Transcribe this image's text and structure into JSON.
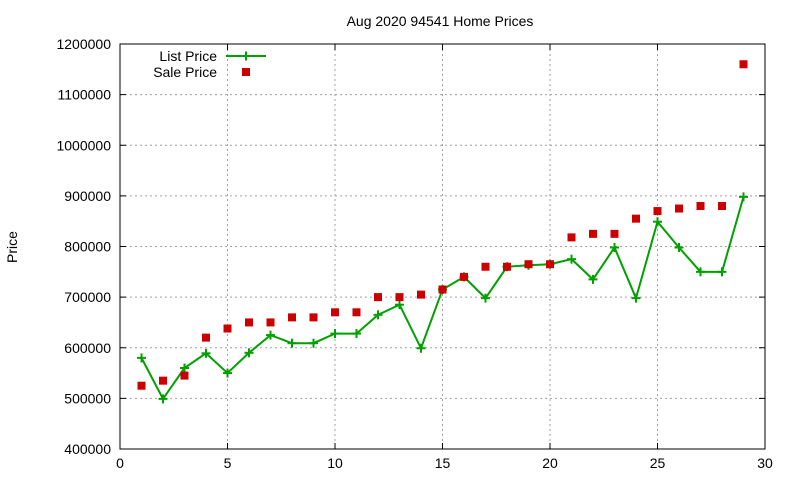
{
  "chart_data": {
    "type": "line",
    "title": "Aug 2020 94541 Home Prices",
    "xlabel": "",
    "ylabel": "Price",
    "xlim": [
      0,
      30
    ],
    "ylim": [
      400000,
      1200000
    ],
    "x_ticks": [
      0,
      5,
      10,
      15,
      20,
      25,
      30
    ],
    "y_ticks": [
      400000,
      500000,
      600000,
      700000,
      800000,
      900000,
      1000000,
      1100000,
      1200000
    ],
    "grid": true,
    "legend_position": "top-left",
    "series": [
      {
        "name": "List Price",
        "style": "linespoints",
        "marker": "plus",
        "color": "#00a000",
        "x": [
          1,
          2,
          3,
          4,
          5,
          6,
          7,
          8,
          9,
          10,
          11,
          12,
          13,
          14,
          15,
          16,
          17,
          18,
          19,
          20,
          21,
          22,
          23,
          24,
          25,
          26,
          27,
          28,
          29
        ],
        "y": [
          580000,
          499000,
          560000,
          589000,
          550000,
          590000,
          625000,
          609000,
          609000,
          628000,
          628000,
          665000,
          685000,
          599000,
          715000,
          740000,
          698000,
          760000,
          763000,
          765000,
          775000,
          735000,
          798000,
          698000,
          849000,
          798000,
          750000,
          750000,
          898000
        ]
      },
      {
        "name": "Sale Price",
        "style": "points",
        "marker": "square",
        "color": "#cc0000",
        "x": [
          1,
          2,
          3,
          4,
          5,
          6,
          7,
          8,
          9,
          10,
          11,
          12,
          13,
          14,
          15,
          16,
          17,
          18,
          19,
          20,
          21,
          22,
          23,
          24,
          25,
          26,
          27,
          28,
          29
        ],
        "y": [
          525000,
          535000,
          545000,
          620000,
          638000,
          650000,
          650000,
          660000,
          660000,
          670000,
          670000,
          700000,
          700000,
          705000,
          715000,
          740000,
          760000,
          760000,
          765000,
          765000,
          818000,
          825000,
          825000,
          855000,
          870000,
          875000,
          880000,
          880000,
          1160000
        ]
      }
    ]
  }
}
